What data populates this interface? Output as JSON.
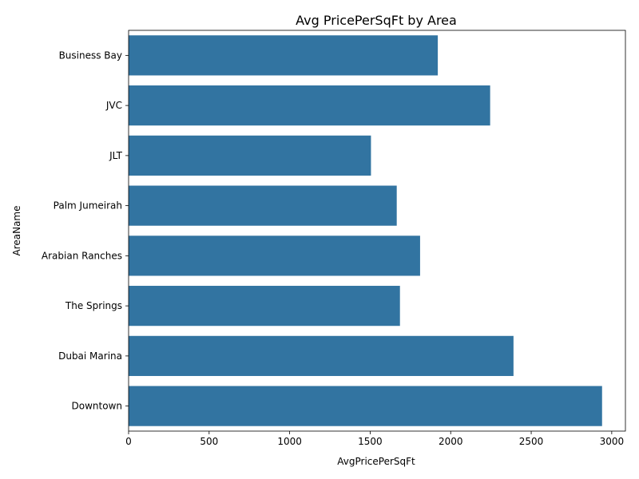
{
  "chart_data": {
    "type": "bar",
    "orientation": "horizontal",
    "title": "Avg PricePerSqFt by Area",
    "xlabel": "AvgPricePerSqFt",
    "ylabel": "AreaName",
    "categories": [
      "Business Bay",
      "JVC",
      "JLT",
      "Palm Jumeirah",
      "Arabian Ranches",
      "The Springs",
      "Dubai Marina",
      "Downtown"
    ],
    "values": [
      1920,
      2245,
      1505,
      1665,
      1810,
      1685,
      2390,
      2940
    ],
    "xlim": [
      0,
      3085
    ],
    "xticks": [
      0,
      500,
      1000,
      1500,
      2000,
      2500,
      3000
    ],
    "bar_color": "#3274a1",
    "grid": false,
    "legend": "none"
  }
}
